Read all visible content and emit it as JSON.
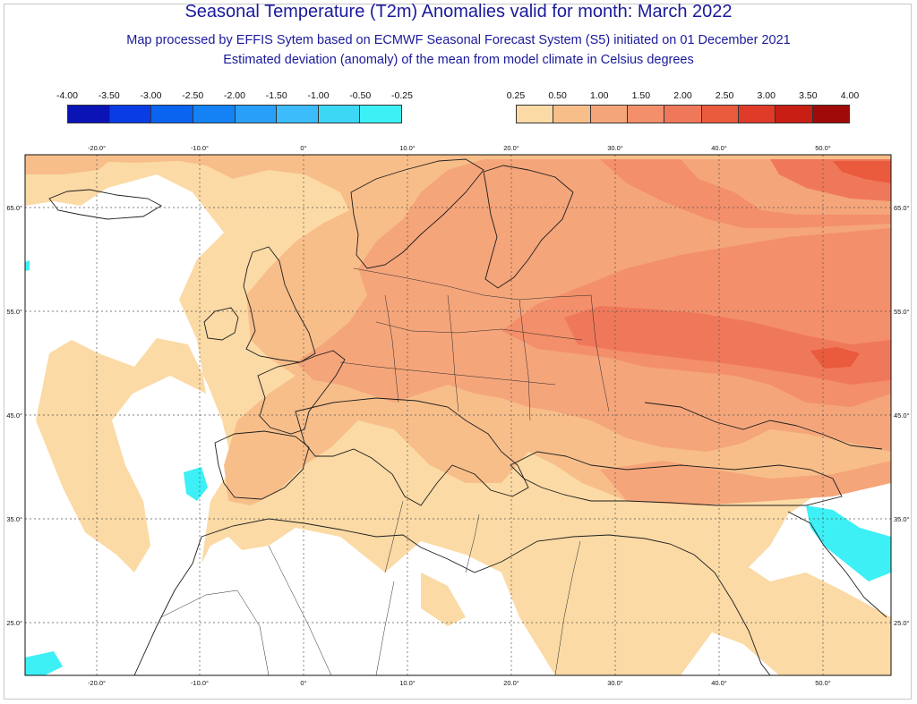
{
  "title": "Seasonal Temperature (T2m) Anomalies valid for month: March 2022",
  "subtitle1": "Map processed by EFFIS Sytem based on ECMWF Seasonal Forecast System (S5) initiated on 01 December 2021",
  "subtitle2": "Estimated deviation (anomaly) of the mean from model climate in Celsius degrees",
  "legend_negative": {
    "labels": [
      "-4.00",
      "-3.50",
      "-3.00",
      "-2.50",
      "-2.00",
      "-1.50",
      "-1.00",
      "-0.50",
      "-0.25"
    ],
    "colors": [
      "#0a14b4",
      "#0a3ce6",
      "#0a64f0",
      "#1482f5",
      "#289ff8",
      "#3cbcfa",
      "#3cd7f5",
      "#3cf0f5"
    ]
  },
  "legend_positive": {
    "labels": [
      "0.25",
      "0.50",
      "1.00",
      "1.50",
      "2.00",
      "2.50",
      "3.00",
      "3.50",
      "4.00"
    ],
    "colors": [
      "#fbdaa5",
      "#f8be8a",
      "#f5a57a",
      "#f38f6a",
      "#f0785a",
      "#ea5a3c",
      "#e03a28",
      "#c81e14",
      "#a00a08"
    ]
  },
  "map": {
    "lon_labels": [
      "-20.0°",
      "-10.0°",
      "0°",
      "10.0°",
      "20.0°",
      "30.0°",
      "40.0°",
      "50.0°"
    ],
    "lat_labels": [
      "65.0°",
      "55.0°",
      "45.0°",
      "35.0°",
      "25.0°"
    ]
  }
}
